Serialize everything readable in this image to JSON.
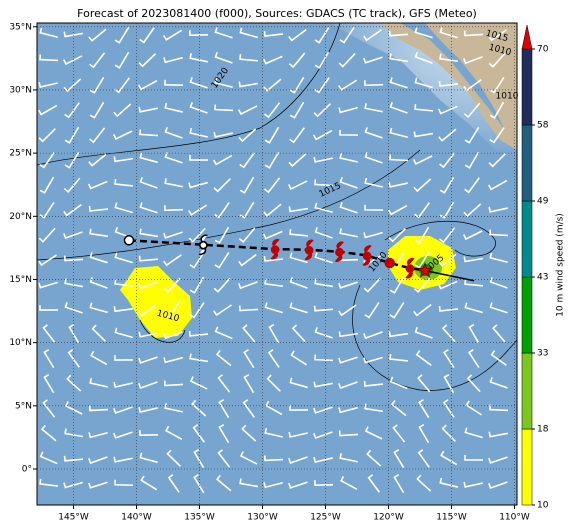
{
  "chart_data": {
    "type": "map",
    "title": "Forecast of 2023081400 (f000), Sources: GDACS (TC track), GFS (Meteo)",
    "xlim": [
      -147.9,
      -109.8
    ],
    "ylim": [
      -2.85,
      35.3
    ],
    "grid": true,
    "xticks": [
      {
        "value": -145,
        "label": "145°W"
      },
      {
        "value": -140,
        "label": "140°W"
      },
      {
        "value": -135,
        "label": "135°W"
      },
      {
        "value": -130,
        "label": "130°W"
      },
      {
        "value": -125,
        "label": "125°W"
      },
      {
        "value": -120,
        "label": "120°W"
      },
      {
        "value": -115,
        "label": "115°W"
      },
      {
        "value": -110,
        "label": "110°W"
      }
    ],
    "yticks": [
      {
        "value": 0,
        "label": "0°"
      },
      {
        "value": 5,
        "label": "5°N"
      },
      {
        "value": 10,
        "label": "10°N"
      },
      {
        "value": 15,
        "label": "15°N"
      },
      {
        "value": 20,
        "label": "20°N"
      },
      {
        "value": 25,
        "label": "25°N"
      },
      {
        "value": 30,
        "label": "30°N"
      },
      {
        "value": 35,
        "label": "35°N"
      }
    ],
    "track": {
      "lon": [
        -140.6,
        -134.7,
        -129.0,
        -126.3,
        -123.9,
        -121.7,
        -119.9,
        -118.3,
        -117.1
      ],
      "lat": [
        18.1,
        17.75,
        17.4,
        17.35,
        17.2,
        16.9,
        16.3,
        15.9,
        15.7
      ],
      "marker": [
        "circle",
        "tc",
        "tc",
        "tc",
        "tc",
        "tc",
        "circle",
        "tc",
        "star"
      ],
      "color": [
        "#000000",
        "#000000",
        "#c00000",
        "#c00000",
        "#c00000",
        "#c00000",
        "#c00000",
        "#c00000",
        "#e00000"
      ]
    },
    "forecast": {
      "lon": [
        -117.1,
        -113.2
      ],
      "lat": [
        15.7,
        14.9
      ],
      "color": "#000000"
    },
    "isobar_labels": [
      "1020",
      "1015",
      "1010",
      "1010",
      "1005",
      "1015",
      "1010",
      "1010"
    ],
    "colorbar": {
      "label": "10 m wind speed (m/s)",
      "levels": [
        10,
        18,
        33,
        43,
        49,
        58,
        70
      ],
      "colors": [
        "#ffff00",
        "#7cc61e",
        "#00a000",
        "#008b8b",
        "#215f80",
        "#1f2d5e"
      ],
      "extend_color": "#e00000"
    }
  }
}
